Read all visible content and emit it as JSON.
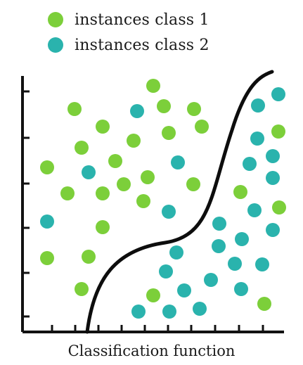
{
  "legend": {
    "class1": {
      "label": "instances class 1",
      "color": "#7ccf3a"
    },
    "class2": {
      "label": "instances class 2",
      "color": "#2ab3ad"
    }
  },
  "caption": "Classification function",
  "axes_color": "#111111",
  "class1_points": [
    [
      218,
      122
    ],
    [
      106,
      155
    ],
    [
      233,
      151
    ],
    [
      276,
      155
    ],
    [
      146,
      180
    ],
    [
      287,
      180
    ],
    [
      190,
      200
    ],
    [
      240,
      189
    ],
    [
      116,
      210
    ],
    [
      67,
      238
    ],
    [
      164,
      229
    ],
    [
      210,
      252
    ],
    [
      96,
      275
    ],
    [
      146,
      275
    ],
    [
      176,
      262
    ],
    [
      275,
      262
    ],
    [
      204,
      286
    ],
    [
      146,
      323
    ],
    [
      67,
      367
    ],
    [
      126,
      365
    ],
    [
      116,
      411
    ],
    [
      218,
      420
    ],
    [
      342,
      273
    ],
    [
      396,
      187
    ],
    [
      397,
      295
    ],
    [
      376,
      432
    ]
  ],
  "class2_points": [
    [
      195,
      158
    ],
    [
      396,
      134
    ],
    [
      367,
      150
    ],
    [
      366,
      197
    ],
    [
      388,
      222
    ],
    [
      253,
      231
    ],
    [
      355,
      233
    ],
    [
      126,
      245
    ],
    [
      388,
      253
    ],
    [
      67,
      315
    ],
    [
      240,
      301
    ],
    [
      362,
      299
    ],
    [
      312,
      318
    ],
    [
      388,
      327
    ],
    [
      251,
      359
    ],
    [
      311,
      350
    ],
    [
      344,
      340
    ],
    [
      236,
      386
    ],
    [
      334,
      375
    ],
    [
      373,
      376
    ],
    [
      300,
      398
    ],
    [
      262,
      413
    ],
    [
      343,
      411
    ],
    [
      197,
      443
    ],
    [
      241,
      443
    ],
    [
      284,
      439
    ]
  ]
}
